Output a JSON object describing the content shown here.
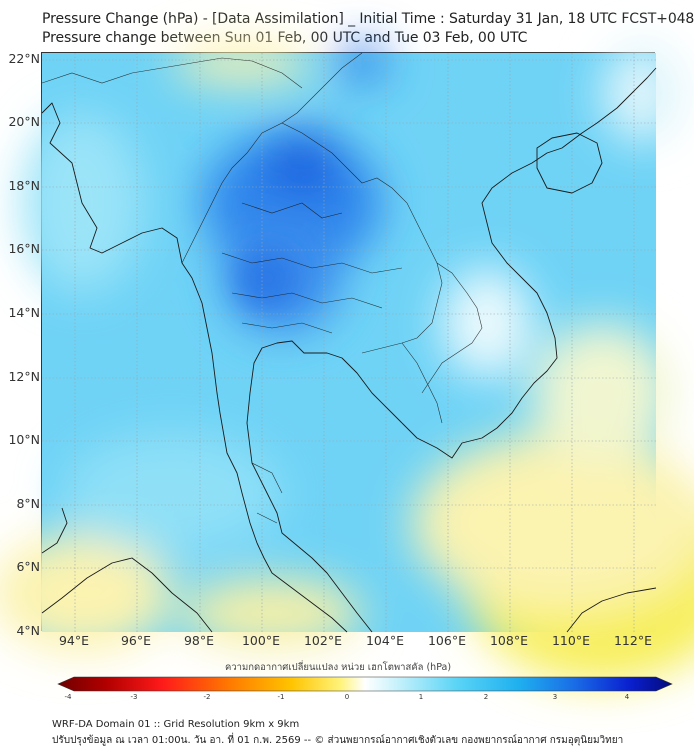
{
  "header": {
    "title_line1": "Pressure Change (hPa) - [Data Assimilation] _ Initial Time : Saturday 31 Jan, 18 UTC FCST+048",
    "title_line2": "Pressure change between Sun 01 Feb, 00 UTC and Tue 03 Feb, 00 UTC"
  },
  "map": {
    "region": "Thailand and surrounding Indochina",
    "lat_labels": [
      "22°N",
      "20°N",
      "18°N",
      "16°N",
      "14°N",
      "12°N",
      "10°N",
      "8°N",
      "6°N",
      "4°N"
    ],
    "lon_labels": [
      "94°E",
      "96°E",
      "98°E",
      "100°E",
      "102°E",
      "104°E",
      "106°E",
      "108°E",
      "110°E",
      "112°E"
    ],
    "colors": {
      "strong_decrease": "#1c64e0",
      "moderate_decrease": "#3cb4f0",
      "weak_decrease": "#8ee2fa",
      "near_zero": "#e8f8fd",
      "weak_increase": "#fbf3b0",
      "moderate_increase": "#f7ef5a"
    }
  },
  "colorbar": {
    "caption": "ความกดอากาศเปลี่ยนแปลง หน่วย เฮกโตพาสคัล (hPa)",
    "tick_labels": [
      "-4",
      "-3",
      "-2",
      "-1",
      "0",
      "1",
      "2",
      "3",
      "4"
    ],
    "min": -4,
    "max": 4
  },
  "footer": {
    "line1": "WRF-DA Domain 01 :: Grid Resolution 9km x 9km",
    "line2": "ปรับปรุงข้อมูล ณ เวลา 01:00น. วัน อา. ที่ 01 ก.พ. 2569 -- © ส่วนพยากรณ์อากาศเชิงตัวเลข กองพยากรณ์อากาศ กรมอุตุนิยมวิทยา"
  }
}
